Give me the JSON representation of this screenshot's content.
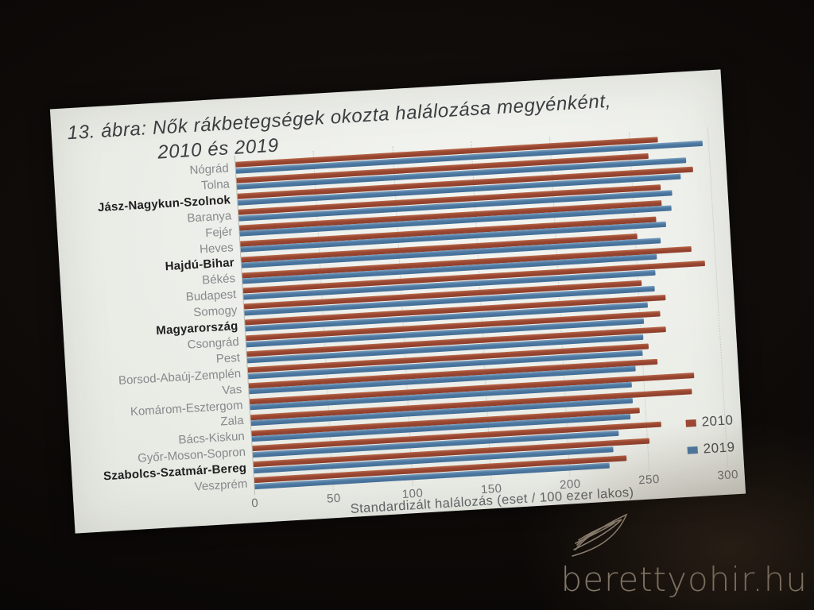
{
  "photo": {
    "watermark": "berettyohir.hu",
    "background_color": "#0c0907"
  },
  "slide": {
    "background_color": "#eceee8",
    "title_line1": "13. ábra: Nők rákbetegségek okozta halálozása megyénként,",
    "title_line2": "2010 és 2019"
  },
  "chart_data": {
    "type": "bar",
    "orientation": "horizontal",
    "title": "13. ábra: Nők rákbetegségek okozta halálozása megyénként, 2010 és 2019",
    "xlabel": "Standardizált halálozás (eset / 100 ezer lakos)",
    "ylabel": "",
    "xlim": [
      0,
      300
    ],
    "xticks": [
      0,
      50,
      100,
      150,
      200,
      250,
      300
    ],
    "grid": true,
    "legend_position": "bottom-right",
    "categories": [
      "Nógrád",
      "Tolna",
      "Jász-Nagykun-Szolnok",
      "Baranya",
      "Fejér",
      "Heves",
      "Hajdú-Bihar",
      "Békés",
      "Budapest",
      "Somogy",
      "Magyarország",
      "Csongrád",
      "Pest",
      "Borsod-Abaúj-Zemplén",
      "Vas",
      "Komárom-Esztergom",
      "Zala",
      "Bács-Kiskun",
      "Győr-Moson-Sopron",
      "Szabolcs-Szatmár-Bereg",
      "Veszprém"
    ],
    "bold_categories": [
      "Jász-Nagykun-Szolnok",
      "Hajdú-Bihar",
      "Magyarország",
      "Szabolcs-Szatmár-Bereg"
    ],
    "series": [
      {
        "name": "2010",
        "color": "#9c4833",
        "values": [
          268,
          261,
          289,
          268,
          268,
          264,
          251,
          285,
          293,
          252,
          267,
          263,
          266,
          254,
          259,
          282,
          280,
          246,
          259,
          251,
          236
        ]
      },
      {
        "name": "2019",
        "color": "#4e7aa3",
        "values": [
          296,
          285,
          281,
          275,
          274,
          270,
          266,
          263,
          261,
          260,
          255,
          252,
          251,
          250,
          245,
          242,
          242,
          240,
          232,
          228,
          225
        ]
      }
    ]
  }
}
